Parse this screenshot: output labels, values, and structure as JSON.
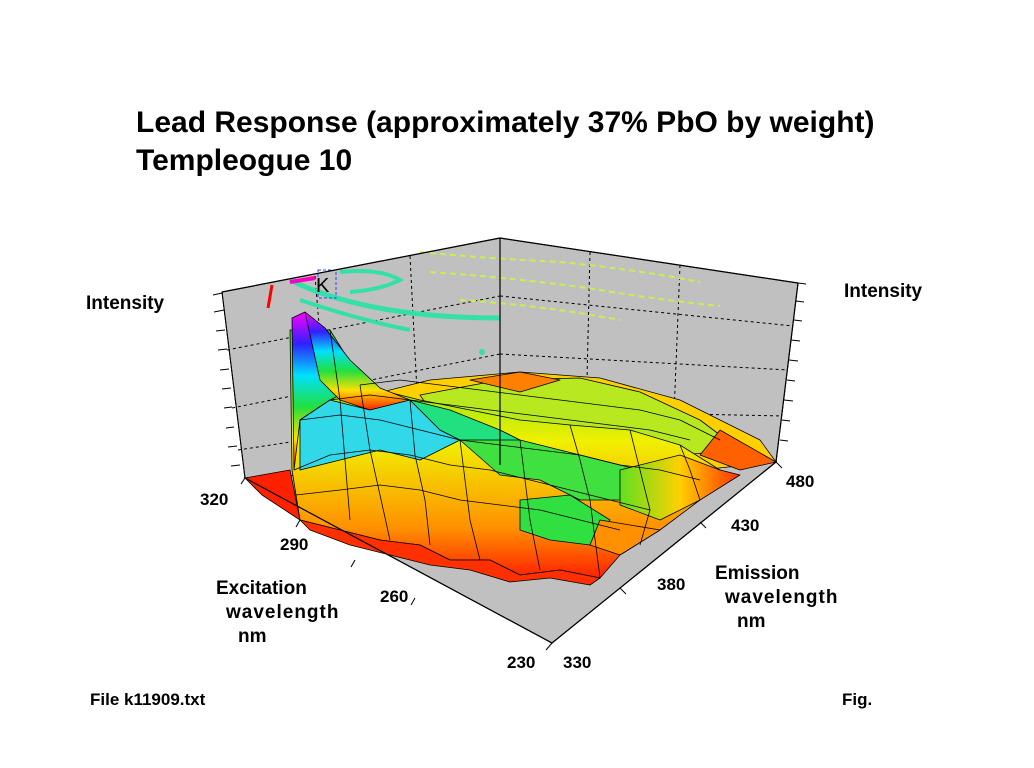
{
  "chart_data": {
    "type": "surface",
    "title": "Lead Response (approximately 37% PbO by weight)",
    "subtitle": "Templeogue 10",
    "zlabel_left": "Intensity",
    "zlabel_right": "Intensity",
    "excitation_axis": {
      "label_lines": [
        "Excitation",
        "wavelength",
        "nm"
      ],
      "ticks": [
        "320",
        "290",
        "260",
        "230"
      ],
      "range": [
        230,
        320
      ]
    },
    "emission_axis": {
      "label_lines": [
        "Emission",
        "wavelength",
        "nm"
      ],
      "ticks": [
        "330",
        "380",
        "430",
        "480"
      ],
      "range": [
        330,
        480
      ]
    },
    "contour_marker": "K",
    "description_of_data": "Fluorescence intensity surface; sharp peak near excitation 300-310 nm, emission 330-345 nm; elsewhere a moderate plateau (yellow/green) with low values (red/orange) toward the edges."
  },
  "footer": {
    "file": "File k11909.txt",
    "fig": "Fig."
  },
  "colors": {
    "wall": "#c0c0c0",
    "floor": "#c0c0c0",
    "contour_main": "#33e0a8",
    "contour_light": "#c8f050",
    "contour_red": "#ff0000",
    "contour_magenta": "#ff00c0"
  }
}
